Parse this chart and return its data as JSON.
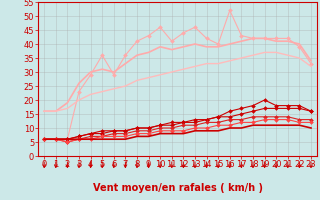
{
  "xlabel": "Vent moyen/en rafales ( km/h )",
  "ylabel": "",
  "bg_color": "#cce8e8",
  "grid_color": "#aaaaaa",
  "xlim": [
    -0.5,
    23.5
  ],
  "ylim": [
    0,
    55
  ],
  "yticks": [
    0,
    5,
    10,
    15,
    20,
    25,
    30,
    35,
    40,
    45,
    50,
    55
  ],
  "xticks": [
    0,
    1,
    2,
    3,
    4,
    5,
    6,
    7,
    8,
    9,
    10,
    11,
    12,
    13,
    14,
    15,
    16,
    17,
    18,
    19,
    20,
    21,
    22,
    23
  ],
  "series": [
    {
      "x": [
        0,
        1,
        2,
        3,
        4,
        5,
        6,
        7,
        8,
        9,
        10,
        11,
        12,
        13,
        14,
        15,
        16,
        17,
        18,
        19,
        20,
        21,
        22,
        23
      ],
      "y": [
        6,
        6,
        6,
        23,
        29,
        36,
        29,
        36,
        41,
        43,
        46,
        41,
        44,
        46,
        42,
        40,
        52,
        43,
        42,
        42,
        42,
        42,
        39,
        33
      ],
      "color": "#ffaaaa",
      "marker": "D",
      "markersize": 2.0,
      "linewidth": 0.8
    },
    {
      "x": [
        0,
        1,
        2,
        3,
        4,
        5,
        6,
        7,
        8,
        9,
        10,
        11,
        12,
        13,
        14,
        15,
        16,
        17,
        18,
        19,
        20,
        21,
        22,
        23
      ],
      "y": [
        16,
        16,
        19,
        26,
        30,
        31,
        30,
        33,
        36,
        37,
        39,
        38,
        39,
        40,
        39,
        39,
        40,
        41,
        42,
        42,
        41,
        41,
        40,
        34
      ],
      "color": "#ffaaaa",
      "marker": null,
      "markersize": 0,
      "linewidth": 1.2
    },
    {
      "x": [
        0,
        1,
        2,
        3,
        4,
        5,
        6,
        7,
        8,
        9,
        10,
        11,
        12,
        13,
        14,
        15,
        16,
        17,
        18,
        19,
        20,
        21,
        22,
        23
      ],
      "y": [
        16,
        16,
        17,
        20,
        22,
        23,
        24,
        25,
        27,
        28,
        29,
        30,
        31,
        32,
        33,
        33,
        34,
        35,
        36,
        37,
        37,
        36,
        35,
        32
      ],
      "color": "#ffbbbb",
      "marker": null,
      "markersize": 0,
      "linewidth": 1.0
    },
    {
      "x": [
        0,
        1,
        2,
        3,
        4,
        5,
        6,
        7,
        8,
        9,
        10,
        11,
        12,
        13,
        14,
        15,
        16,
        17,
        18,
        19,
        20,
        21,
        22,
        23
      ],
      "y": [
        6,
        6,
        6,
        7,
        8,
        8,
        9,
        9,
        10,
        10,
        11,
        11,
        12,
        12,
        13,
        14,
        16,
        17,
        18,
        20,
        18,
        18,
        18,
        16
      ],
      "color": "#cc0000",
      "marker": "D",
      "markersize": 2.0,
      "linewidth": 0.8
    },
    {
      "x": [
        0,
        1,
        2,
        3,
        4,
        5,
        6,
        7,
        8,
        9,
        10,
        11,
        12,
        13,
        14,
        15,
        16,
        17,
        18,
        19,
        20,
        21,
        22,
        23
      ],
      "y": [
        6,
        6,
        6,
        7,
        8,
        9,
        9,
        9,
        10,
        10,
        11,
        12,
        12,
        13,
        13,
        14,
        14,
        15,
        16,
        17,
        17,
        17,
        17,
        16
      ],
      "color": "#cc0000",
      "marker": "D",
      "markersize": 2.0,
      "linewidth": 0.8
    },
    {
      "x": [
        0,
        1,
        2,
        3,
        4,
        5,
        6,
        7,
        8,
        9,
        10,
        11,
        12,
        13,
        14,
        15,
        16,
        17,
        18,
        19,
        20,
        21,
        22,
        23
      ],
      "y": [
        6,
        6,
        5,
        6,
        7,
        7,
        8,
        8,
        9,
        9,
        10,
        10,
        11,
        11,
        12,
        12,
        13,
        13,
        14,
        14,
        14,
        14,
        13,
        13
      ],
      "color": "#dd2222",
      "marker": "D",
      "markersize": 2.0,
      "linewidth": 0.8
    },
    {
      "x": [
        0,
        1,
        2,
        3,
        4,
        5,
        6,
        7,
        8,
        9,
        10,
        11,
        12,
        13,
        14,
        15,
        16,
        17,
        18,
        19,
        20,
        21,
        22,
        23
      ],
      "y": [
        6,
        6,
        5,
        6,
        6,
        7,
        7,
        7,
        8,
        8,
        9,
        9,
        9,
        10,
        10,
        11,
        11,
        12,
        12,
        13,
        13,
        13,
        12,
        12
      ],
      "color": "#ff4444",
      "marker": "D",
      "markersize": 2.0,
      "linewidth": 0.8
    },
    {
      "x": [
        0,
        1,
        2,
        3,
        4,
        5,
        6,
        7,
        8,
        9,
        10,
        11,
        12,
        13,
        14,
        15,
        16,
        17,
        18,
        19,
        20,
        21,
        22,
        23
      ],
      "y": [
        6,
        6,
        6,
        6,
        6,
        6,
        6,
        6,
        7,
        7,
        8,
        8,
        8,
        9,
        9,
        9,
        10,
        10,
        11,
        11,
        11,
        11,
        11,
        10
      ],
      "color": "#cc0000",
      "marker": null,
      "markersize": 0,
      "linewidth": 1.2
    }
  ],
  "arrow_color": "#cc0000",
  "xlabel_color": "#cc0000",
  "xlabel_fontsize": 7,
  "tick_fontsize": 6
}
